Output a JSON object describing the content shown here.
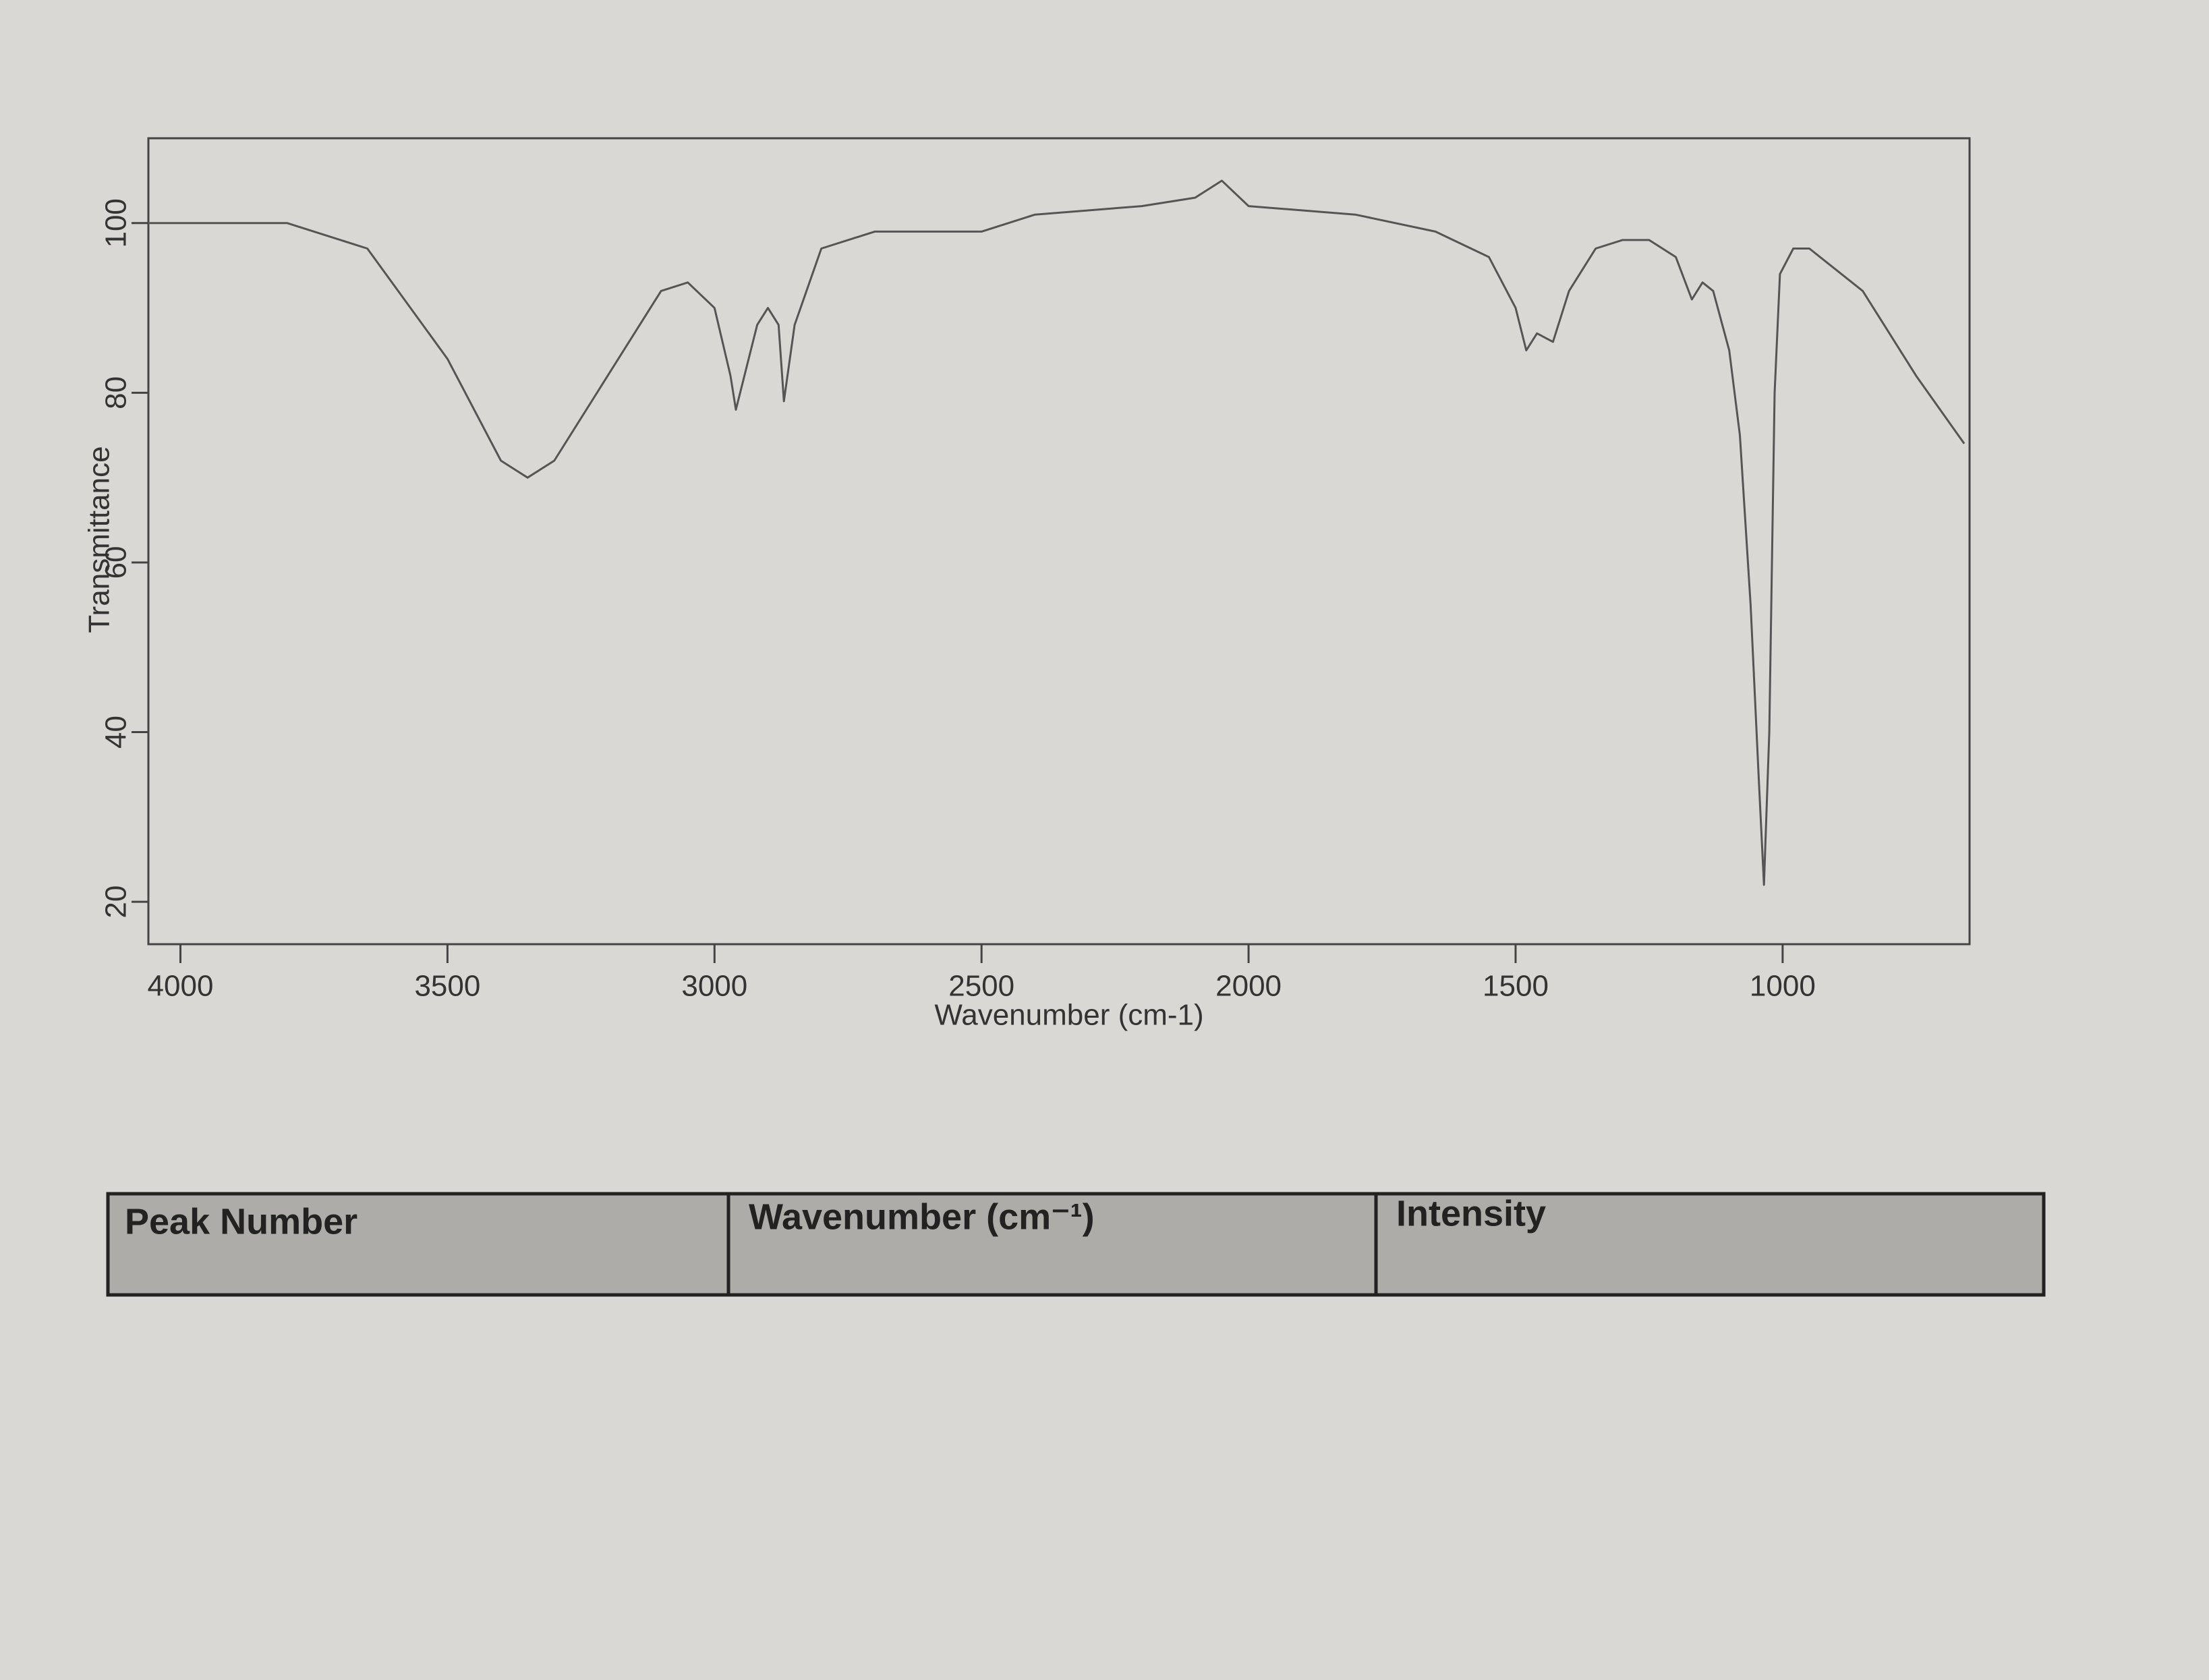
{
  "chart_data": {
    "type": "line",
    "y_label": "Transmittance",
    "x_label": "Wavenumber (cm-1)",
    "x": [
      4060,
      3800,
      3650,
      3500,
      3400,
      3350,
      3300,
      3200,
      3100,
      3050,
      3000,
      2970,
      2960,
      2940,
      2920,
      2900,
      2880,
      2870,
      2850,
      2800,
      2700,
      2500,
      2400,
      2200,
      2100,
      2050,
      2000,
      1800,
      1650,
      1550,
      1500,
      1480,
      1460,
      1430,
      1400,
      1350,
      1300,
      1250,
      1200,
      1170,
      1150,
      1130,
      1100,
      1080,
      1060,
      1045,
      1035,
      1025,
      1015,
      1005,
      980,
      950,
      850,
      750,
      660
    ],
    "values": [
      100,
      100,
      97,
      84,
      72,
      70,
      72,
      82,
      92,
      93,
      90,
      82,
      78,
      83,
      88,
      90,
      88,
      79,
      88,
      97,
      99,
      99,
      101,
      102,
      103,
      105,
      102,
      101,
      99,
      96,
      90,
      85,
      87,
      86,
      92,
      97,
      98,
      98,
      96,
      91,
      93,
      92,
      85,
      75,
      55,
      35,
      22,
      40,
      80,
      94,
      97,
      97,
      92,
      82,
      74
    ],
    "color": "#555555",
    "xlim": [
      4060,
      650
    ],
    "xticks": [
      4000,
      3500,
      3000,
      2500,
      2000,
      1500,
      1000
    ],
    "ylim": [
      15,
      110
    ],
    "yticks": [
      20,
      40,
      60,
      80,
      100
    ]
  },
  "table": {
    "headers": [
      "Peak Number",
      "Wavenumber (cm⁻¹)",
      "Intensity"
    ]
  }
}
